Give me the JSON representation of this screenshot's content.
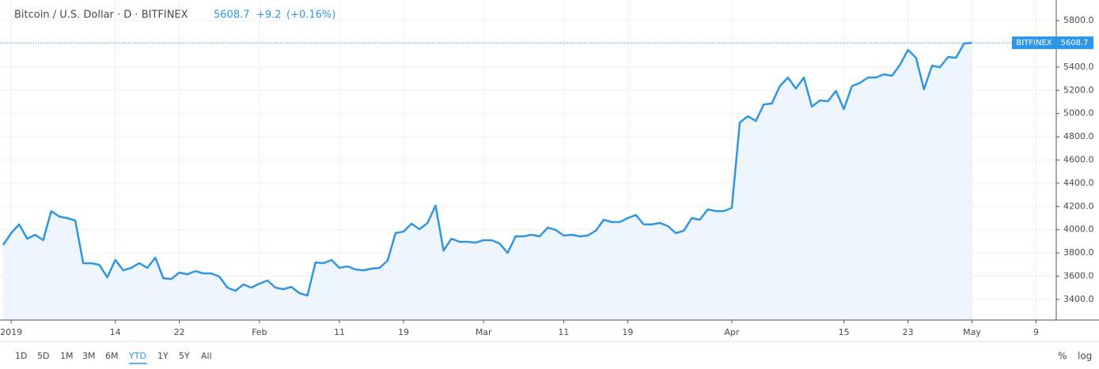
{
  "chart_data": {
    "type": "area",
    "title": "Bitcoin / U.S. Dollar · D · BITFINEX",
    "last": 5608.7,
    "change": "+9.2",
    "change_pct": "(+0.16%)",
    "exchange": "BITFINEX",
    "color": "#2f96e6",
    "fill": "#eef5fc",
    "log_scale": false,
    "grid": true,
    "categories": [
      null,
      "2019",
      null,
      null,
      null,
      null,
      null,
      null,
      null,
      null,
      null,
      null,
      null,
      null,
      "14",
      null,
      null,
      null,
      null,
      null,
      null,
      null,
      "22",
      null,
      null,
      null,
      null,
      null,
      null,
      null,
      null,
      null,
      "Feb",
      null,
      null,
      null,
      null,
      null,
      null,
      null,
      null,
      null,
      "11",
      null,
      null,
      null,
      null,
      null,
      null,
      null,
      "19",
      null,
      null,
      null,
      null,
      null,
      null,
      null,
      null,
      null,
      "Mar",
      null,
      null,
      null,
      null,
      null,
      null,
      null,
      null,
      null,
      "11",
      null,
      null,
      null,
      null,
      null,
      null,
      null,
      "19",
      null,
      null,
      null,
      null,
      null,
      null,
      null,
      null,
      null,
      null,
      null,
      null,
      "Apr",
      null,
      null,
      null,
      null,
      null,
      null,
      null,
      null,
      null,
      null,
      null,
      null,
      null,
      "15",
      null,
      null,
      null,
      null,
      null,
      null,
      null,
      "23",
      null,
      null,
      null,
      null,
      null,
      null,
      null,
      "May",
      null,
      null,
      null,
      null,
      null,
      null,
      null,
      "9",
      null,
      null
    ],
    "values": [
      3869,
      3971,
      4046,
      3923,
      3957,
      3910,
      4161,
      4114,
      4100,
      4080,
      3712,
      3712,
      3699,
      3590,
      3740,
      3651,
      3672,
      3712,
      3672,
      3760,
      3583,
      3576,
      3631,
      3617,
      3644,
      3624,
      3624,
      3597,
      3502,
      3474,
      3529,
      3502,
      3536,
      3563,
      3502,
      3488,
      3508,
      3454,
      3434,
      3719,
      3712,
      3740,
      3672,
      3685,
      3658,
      3651,
      3665,
      3672,
      3733,
      3971,
      3984,
      4052,
      4005,
      4059,
      4209,
      3821,
      3923,
      3896,
      3896,
      3889,
      3910,
      3910,
      3882,
      3801,
      3943,
      3943,
      3957,
      3943,
      4018,
      3998,
      3950,
      3957,
      3943,
      3950,
      3991,
      4086,
      4066,
      4066,
      4100,
      4127,
      4046,
      4046,
      4059,
      4032,
      3971,
      3991,
      4100,
      4086,
      4175,
      4161,
      4161,
      4188,
      4923,
      4977,
      4936,
      5079,
      5086,
      5236,
      5310,
      5215,
      5310,
      5059,
      5113,
      5106,
      5195,
      5038,
      5236,
      5263,
      5310,
      5310,
      5338,
      5324,
      5419,
      5548,
      5480,
      5208,
      5412,
      5398,
      5487,
      5480,
      5602,
      5608.7,
      null,
      null,
      null,
      null,
      null,
      null,
      null,
      null,
      null,
      null
    ],
    "ylim": [
      3223,
      5977
    ],
    "yticks": [
      {
        "value": 3400,
        "label": "3400.0"
      },
      {
        "value": 3600,
        "label": "3600.0"
      },
      {
        "value": 3800,
        "label": "3800.0"
      },
      {
        "value": 4000,
        "label": "4000.0"
      },
      {
        "value": 4200,
        "label": "4200.0"
      },
      {
        "value": 4400,
        "label": "4400.0"
      },
      {
        "value": 4600,
        "label": "4600.0"
      },
      {
        "value": 4800,
        "label": "4800.0"
      },
      {
        "value": 5000,
        "label": "5000.0"
      },
      {
        "value": 5200,
        "label": "5200.0"
      },
      {
        "value": 5400,
        "label": "5400.0"
      },
      {
        "value": 5600,
        "label": "5600.0"
      },
      {
        "value": 5800,
        "label": "5800.0"
      }
    ],
    "toolbar": {
      "ranges": [
        "1D",
        "5D",
        "1M",
        "3M",
        "6M",
        "YTD",
        "1Y",
        "5Y",
        "All"
      ],
      "active": 5,
      "options": [
        "%",
        "log"
      ]
    }
  }
}
